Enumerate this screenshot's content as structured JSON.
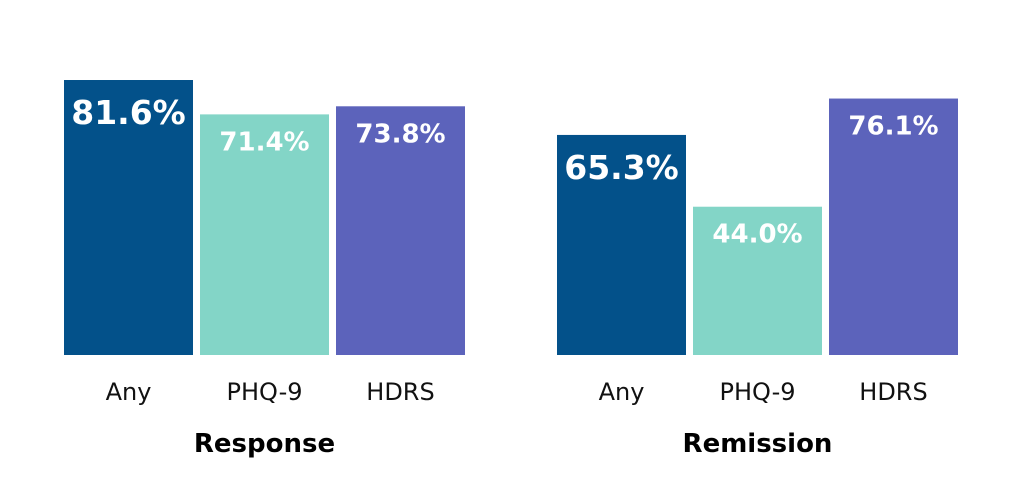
{
  "chart_data": {
    "type": "bar",
    "categories": [
      "Any",
      "PHQ-9",
      "HDRS"
    ],
    "colors": [
      "#03518a",
      "#83d5c7",
      "#5c63bb"
    ],
    "groups": [
      {
        "title": "Response",
        "values": [
          81.6,
          71.4,
          73.8
        ],
        "labels": [
          "81.6%",
          "71.4%",
          "73.8%"
        ]
      },
      {
        "title": "Remission",
        "values": [
          65.3,
          44.0,
          76.1
        ],
        "labels": [
          "65.3%",
          "44.0%",
          "76.1%"
        ]
      }
    ]
  }
}
